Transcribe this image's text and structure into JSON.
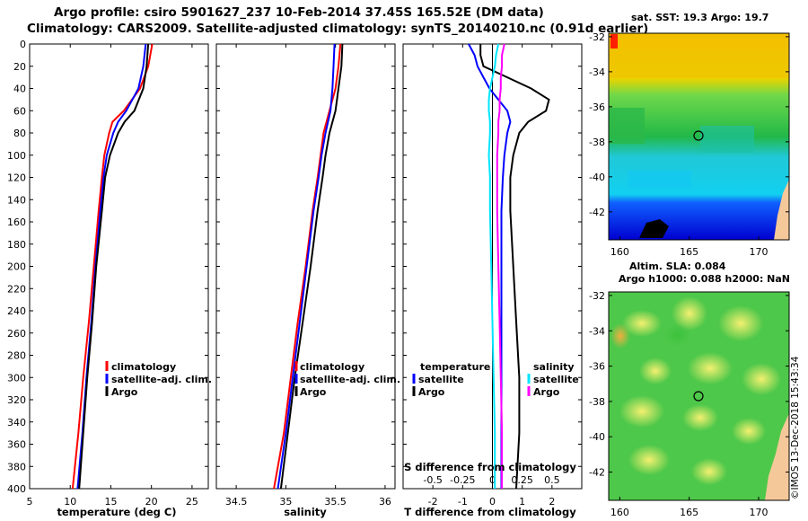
{
  "header": {
    "line1": "Argo profile: csiro 5901627_237 10-Feb-2014 37.45S 165.52E (DM data)",
    "line2": "Climatology: CARS2009. Satellite-adjusted climatology: synTS_20140210.nc (0.91d earlier)"
  },
  "colors": {
    "climatology": "#ff0000",
    "satellite": "#0000ff",
    "argo": "#000000",
    "sal_satellite": "#00e5ff",
    "sal_argo": "#ff00ff"
  },
  "chart_data": [
    {
      "type": "line",
      "name": "temperature",
      "xlabel": "temperature (deg C)",
      "xlim": [
        5,
        27
      ],
      "ylim": [
        0,
        400
      ],
      "xticks": [
        "5",
        "10",
        "15",
        "20",
        "25"
      ],
      "xtick_values": [
        5,
        10,
        15,
        20,
        25
      ],
      "yticks": [
        "0",
        "20",
        "40",
        "60",
        "80",
        "100",
        "120",
        "140",
        "160",
        "180",
        "200",
        "220",
        "240",
        "260",
        "280",
        "300",
        "320",
        "340",
        "360",
        "380",
        "400"
      ],
      "depth": [
        0,
        20,
        40,
        60,
        70,
        80,
        100,
        120,
        150,
        200,
        250,
        300,
        350,
        400
      ],
      "legend": [
        "climatology",
        "satellite-adj. clim.",
        "Argo"
      ],
      "series": [
        {
          "name": "climatology",
          "values": [
            20.1,
            19.6,
            18.6,
            16.6,
            15.2,
            14.8,
            14.2,
            13.9,
            13.5,
            12.9,
            12.3,
            11.6,
            11.0,
            10.3
          ]
        },
        {
          "name": "satellite-adj. clim.",
          "values": [
            19.3,
            19.0,
            18.4,
            16.9,
            15.9,
            15.3,
            14.5,
            14.1,
            13.7,
            13.1,
            12.6,
            12.0,
            11.5,
            10.9
          ]
        },
        {
          "name": "Argo",
          "values": [
            19.6,
            19.4,
            19.0,
            17.9,
            16.7,
            15.9,
            14.9,
            14.3,
            13.9,
            13.2,
            12.7,
            12.1,
            11.6,
            11.1
          ]
        }
      ]
    },
    {
      "type": "line",
      "name": "salinity",
      "xlabel": "salinity",
      "xlim": [
        34.3,
        36.1
      ],
      "ylim": [
        0,
        400
      ],
      "xticks": [
        "34.5",
        "35",
        "35.5",
        "36"
      ],
      "xtick_values": [
        34.5,
        35,
        35.5,
        36
      ],
      "depth": [
        0,
        20,
        40,
        60,
        80,
        100,
        120,
        150,
        200,
        250,
        300,
        350,
        400
      ],
      "legend": [
        "climatology",
        "satellite-adj. clim.",
        "Argo"
      ],
      "series": [
        {
          "name": "climatology",
          "values": [
            35.55,
            35.53,
            35.5,
            35.44,
            35.38,
            35.35,
            35.32,
            35.27,
            35.2,
            35.12,
            35.05,
            34.98,
            34.88
          ]
        },
        {
          "name": "satellite-adj. clim.",
          "values": [
            35.49,
            35.48,
            35.47,
            35.45,
            35.4,
            35.36,
            35.33,
            35.28,
            35.21,
            35.14,
            35.07,
            35.0,
            34.92
          ]
        },
        {
          "name": "Argo",
          "values": [
            35.57,
            35.56,
            35.53,
            35.5,
            35.44,
            35.4,
            35.37,
            35.32,
            35.25,
            35.17,
            35.09,
            35.02,
            34.95
          ]
        }
      ]
    },
    {
      "type": "line",
      "name": "differences",
      "xlabel": "T difference from climatology",
      "xlabel_top": "S difference from climatology",
      "xlim": [
        -3,
        3
      ],
      "ylim": [
        0,
        400
      ],
      "xticks": [
        "-2",
        "-1",
        "0",
        "1",
        "2"
      ],
      "xtick_values": [
        -2,
        -1,
        0,
        1,
        2
      ],
      "xticks_top": [
        "-0.5",
        "-0.25",
        "0",
        "0.25",
        "0.5"
      ],
      "depth": [
        0,
        10,
        20,
        30,
        40,
        50,
        60,
        70,
        80,
        100,
        120,
        150,
        200,
        250,
        300,
        350,
        400
      ],
      "legend_temperature": {
        "title": "temperature",
        "items": [
          "satellite",
          "Argo"
        ]
      },
      "legend_salinity": {
        "title": "salinity",
        "items": [
          "satellite",
          "Argo"
        ]
      },
      "series": [
        {
          "name": "temperature satellite",
          "values": [
            -0.8,
            -0.6,
            -0.5,
            -0.3,
            -0.1,
            0.2,
            0.5,
            0.6,
            0.5,
            0.4,
            0.35,
            0.3,
            0.3,
            0.3,
            0.3,
            0.3,
            0.3
          ]
        },
        {
          "name": "temperature Argo",
          "values": [
            -0.4,
            -0.4,
            -0.3,
            0.5,
            1.3,
            1.9,
            1.8,
            1.2,
            0.9,
            0.7,
            0.6,
            0.6,
            0.7,
            0.8,
            0.9,
            0.9,
            0.8
          ]
        },
        {
          "name": "salinity satellite",
          "values": [
            0.05,
            0.03,
            0.02,
            0.0,
            -0.02,
            -0.03,
            -0.03,
            -0.02,
            -0.02,
            -0.03,
            -0.02,
            -0.02,
            -0.01,
            0.0,
            0.01,
            0.02,
            0.02
          ]
        },
        {
          "name": "salinity Argo",
          "values": [
            0.1,
            0.08,
            0.08,
            0.07,
            0.07,
            0.06,
            0.06,
            0.05,
            0.05,
            0.04,
            0.04,
            0.04,
            0.05,
            0.06,
            0.07,
            0.08,
            0.08
          ]
        }
      ]
    }
  ],
  "map_sst": {
    "title": "sat. SST: 19.3 Argo: 19.7",
    "lat_ticks": [
      "-32",
      "-34",
      "-36",
      "-38",
      "-40",
      "-42"
    ],
    "lon_ticks": [
      "160",
      "165",
      "170"
    ]
  },
  "map_sla": {
    "title1": "Altim. SLA: 0.084",
    "title2": "Argo h1000: 0.088 h2000: NaN",
    "lat_ticks": [
      "-32",
      "-34",
      "-36",
      "-38",
      "-40",
      "-42"
    ],
    "lon_ticks": [
      "160",
      "165",
      "170"
    ]
  },
  "credit": "©IMOS 13-Dec-2018 15:43:34"
}
